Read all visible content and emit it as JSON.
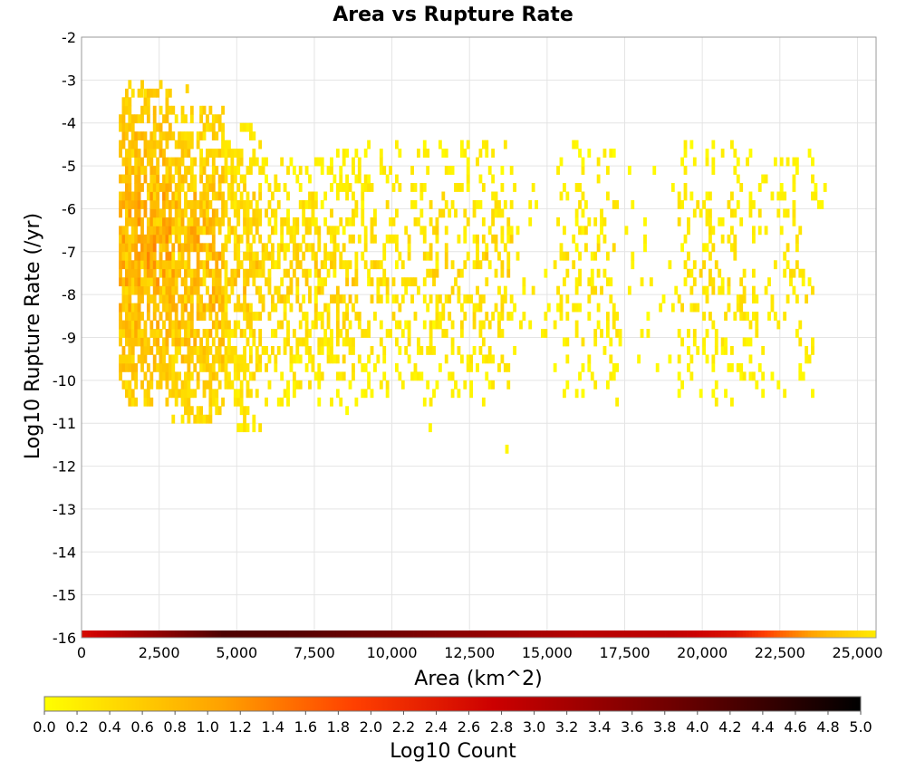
{
  "chart_data": {
    "type": "heatmap",
    "title": "Area vs Rupture Rate",
    "xlabel": "Area (km^2)",
    "ylabel": "Log10 Rupture Rate (/yr)",
    "xlim": [
      0,
      25600
    ],
    "ylim": [
      -16,
      -2
    ],
    "x_ticks": [
      "0",
      "2,500",
      "5,000",
      "7,500",
      "10,000",
      "12,500",
      "15,000",
      "17,500",
      "20,000",
      "22,500",
      "25,000"
    ],
    "x_tick_values": [
      0,
      2500,
      5000,
      7500,
      10000,
      12500,
      15000,
      17500,
      20000,
      22500,
      25000
    ],
    "y_ticks": [
      "-2",
      "-3",
      "-4",
      "-5",
      "-6",
      "-7",
      "-8",
      "-9",
      "-10",
      "-11",
      "-12",
      "-13",
      "-14",
      "-15",
      "-16"
    ],
    "y_tick_values": [
      -2,
      -3,
      -4,
      -5,
      -6,
      -7,
      -8,
      -9,
      -10,
      -11,
      -12,
      -13,
      -14,
      -15,
      -16
    ],
    "grid": true,
    "colorbar": {
      "label": "Log10 Count",
      "range": [
        0,
        5
      ],
      "ticks": [
        "0.0",
        "0.2",
        "0.4",
        "0.6",
        "0.8",
        "1.0",
        "1.2",
        "1.4",
        "1.6",
        "1.8",
        "2.0",
        "2.2",
        "2.4",
        "2.6",
        "2.8",
        "3.0",
        "3.2",
        "3.4",
        "3.6",
        "3.8",
        "4.0",
        "4.2",
        "4.4",
        "4.6",
        "4.8",
        "5.0"
      ],
      "colors": [
        "#ffff00",
        "#ffa000",
        "#ff4000",
        "#cc0000",
        "#6a0000",
        "#000000"
      ]
    },
    "bin_size": {
      "x": 100,
      "y": 0.2
    },
    "clusters": [
      {
        "x_range": [
          1200,
          2900
        ],
        "y_range": [
          -10.6,
          -3.1
        ],
        "density": 0.85,
        "intensity": [
          0.3,
          1.5
        ]
      },
      {
        "x_range": [
          2900,
          4600
        ],
        "y_range": [
          -11.0,
          -3.8
        ],
        "density": 0.78,
        "intensity": [
          0.2,
          1.4
        ]
      },
      {
        "x_range": [
          4600,
          5800
        ],
        "y_range": [
          -11.2,
          -4.2
        ],
        "density": 0.62,
        "intensity": [
          0.1,
          1.0
        ]
      },
      {
        "x_range": [
          5800,
          7700
        ],
        "y_range": [
          -10.6,
          -4.9
        ],
        "density": 0.5,
        "intensity": [
          0.0,
          0.9
        ]
      },
      {
        "x_range": [
          7700,
          9000
        ],
        "y_range": [
          -10.8,
          -4.8
        ],
        "density": 0.42,
        "intensity": [
          0.0,
          0.8
        ]
      },
      {
        "x_range": [
          9000,
          11200
        ],
        "y_range": [
          -10.6,
          -4.5
        ],
        "density": 0.28,
        "intensity": [
          0.0,
          0.7
        ]
      },
      {
        "x_range": [
          11200,
          13900
        ],
        "y_range": [
          -10.6,
          -4.5
        ],
        "density": 0.3,
        "intensity": [
          0.0,
          0.8
        ]
      },
      {
        "x_range": [
          13900,
          15200
        ],
        "y_range": [
          -10.6,
          -4.6
        ],
        "density": 0.06,
        "intensity": [
          0.0,
          0.4
        ]
      },
      {
        "x_range": [
          15200,
          17300
        ],
        "y_range": [
          -10.6,
          -4.5
        ],
        "density": 0.25,
        "intensity": [
          0.0,
          0.6
        ]
      },
      {
        "x_range": [
          17300,
          19200
        ],
        "y_range": [
          -10.4,
          -5.2
        ],
        "density": 0.05,
        "intensity": [
          0.0,
          0.3
        ]
      },
      {
        "x_range": [
          19200,
          21300
        ],
        "y_range": [
          -10.6,
          -4.5
        ],
        "density": 0.22,
        "intensity": [
          0.0,
          0.6
        ]
      },
      {
        "x_range": [
          21300,
          23600
        ],
        "y_range": [
          -10.4,
          -4.8
        ],
        "density": 0.2,
        "intensity": [
          0.0,
          0.6
        ]
      },
      {
        "x_range": [
          23600,
          24200
        ],
        "y_range": [
          -6.2,
          -5.2
        ],
        "density": 0.3,
        "intensity": [
          0.0,
          0.3
        ]
      }
    ],
    "isolated_points": [
      {
        "x": 13650,
        "y": -11.7,
        "value": 0.1
      },
      {
        "x": 11180,
        "y": -11.2,
        "value": 0.1
      },
      {
        "x": 3350,
        "y": -3.3,
        "value": 0.5
      },
      {
        "x": 1880,
        "y": -3.4,
        "value": 0.4
      }
    ],
    "baseline_row": {
      "y": -16,
      "x_range": [
        0,
        25600
      ],
      "profile": [
        {
          "x": 0,
          "value": 2.6
        },
        {
          "x": 2000,
          "value": 3.3
        },
        {
          "x": 4500,
          "value": 4.2
        },
        {
          "x": 7000,
          "value": 4.1
        },
        {
          "x": 10000,
          "value": 3.8
        },
        {
          "x": 13000,
          "value": 3.4
        },
        {
          "x": 16000,
          "value": 3.0
        },
        {
          "x": 19000,
          "value": 2.9
        },
        {
          "x": 21000,
          "value": 2.5
        },
        {
          "x": 22500,
          "value": 1.6
        },
        {
          "x": 24000,
          "value": 0.8
        },
        {
          "x": 25600,
          "value": 0.2
        }
      ]
    }
  }
}
